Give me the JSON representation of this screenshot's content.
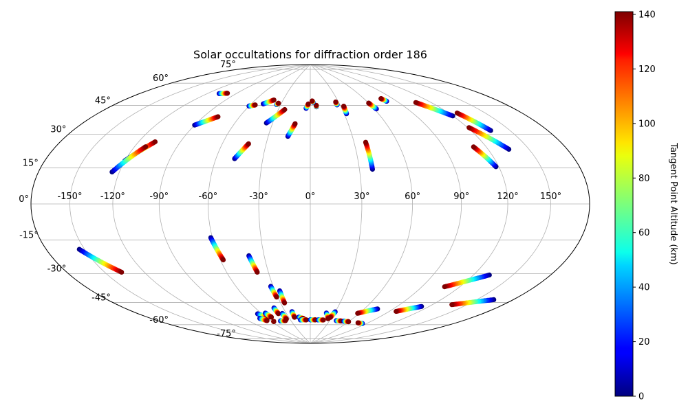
{
  "chart_data": {
    "type": "scatter",
    "projection": "hammer",
    "title": "Solar occultations for diffraction order 186",
    "grid": true,
    "lon_ticks": [
      -150,
      -120,
      -90,
      -60,
      -30,
      0,
      30,
      60,
      90,
      120,
      150
    ],
    "lat_ticks": [
      -75,
      -60,
      -45,
      -30,
      -15,
      0,
      15,
      30,
      45,
      60,
      75
    ],
    "colorbar": {
      "label": "Tangent Point Altitude (km)",
      "colormap": "jet",
      "range": [
        0,
        141
      ],
      "ticks": [
        0,
        20,
        40,
        60,
        80,
        100,
        120,
        140
      ]
    },
    "tracks": [
      {
        "lon0": -108,
        "lat0": 63,
        "lon1": -100,
        "lat1": 64
      },
      {
        "lon0": -90,
        "lat0": 44,
        "lon1": -78,
        "lat1": 50
      },
      {
        "lon0": -60,
        "lat0": 58,
        "lon1": -55,
        "lat1": 59
      },
      {
        "lon0": -48,
        "lat0": 60,
        "lon1": -40,
        "lat1": 63
      },
      {
        "lon0": -34,
        "lat0": 60,
        "lon1": -33,
        "lat1": 61
      },
      {
        "lon0": -35,
        "lat0": 48,
        "lon1": -24,
        "lat1": 57
      },
      {
        "lon0": -48,
        "lat0": 26,
        "lon1": -42,
        "lat1": 35
      },
      {
        "lon0": -16,
        "lat0": 40,
        "lon1": -12,
        "lat1": 48
      },
      {
        "lon0": -4,
        "lat0": 58,
        "lon1": -2,
        "lat1": 61
      },
      {
        "lon0": 6,
        "lat0": 59,
        "lon1": 6,
        "lat1": 60
      },
      {
        "lon0": 3,
        "lat0": 62,
        "lon1": 2,
        "lat1": 63
      },
      {
        "lon0": 27,
        "lat0": 60,
        "lon1": 27,
        "lat1": 62
      },
      {
        "lon0": 32,
        "lat0": 54,
        "lon1": 33,
        "lat1": 59
      },
      {
        "lon0": 38,
        "lat0": 20,
        "lon1": 38,
        "lat1": 36
      },
      {
        "lon0": 62,
        "lat0": 56,
        "lon1": 60,
        "lat1": 60
      },
      {
        "lon0": 80,
        "lat0": 60,
        "lon1": 78,
        "lat1": 62
      },
      {
        "lon0": 120,
        "lat0": 47,
        "lon1": 106,
        "lat1": 57
      },
      {
        "lon0": 135,
        "lat0": 37,
        "lon1": 127,
        "lat1": 48
      },
      {
        "lon0": 135,
        "lat0": 27,
        "lon1": 121,
        "lat1": 40
      },
      {
        "lon0": 118,
        "lat0": 19,
        "lon1": 111,
        "lat1": 30
      },
      {
        "lon0": -120,
        "lat0": 22,
        "lon1": -108,
        "lat1": 33
      },
      {
        "lon0": -125,
        "lat0": 16,
        "lon1": -112,
        "lat1": 30
      },
      {
        "lon0": -154,
        "lat0": -21,
        "lon1": -137,
        "lat1": -34
      },
      {
        "lon0": -61,
        "lat0": -19,
        "lon1": -58,
        "lat1": -32
      },
      {
        "lon0": -40,
        "lat0": -30,
        "lon1": -38,
        "lat1": -40
      },
      {
        "lon0": -32,
        "lat0": -49,
        "lon1": -31,
        "lat1": -56
      },
      {
        "lon0": -26,
        "lat0": -52,
        "lon1": -26,
        "lat1": -60
      },
      {
        "lon0": -65,
        "lat0": -66,
        "lon1": -58,
        "lat1": -69
      },
      {
        "lon0": -70,
        "lat0": -69,
        "lon1": -65,
        "lat1": -71
      },
      {
        "lon0": -57,
        "lat0": -72,
        "lon1": -57,
        "lat1": -72
      },
      {
        "lon0": -55,
        "lat0": -66,
        "lon1": -53,
        "lat1": -69
      },
      {
        "lon0": -40,
        "lat0": -63,
        "lon1": -40,
        "lat1": -67
      },
      {
        "lon0": -46,
        "lat0": -72,
        "lon1": -38,
        "lat1": -72
      },
      {
        "lon0": -35,
        "lat0": -67,
        "lon1": -35,
        "lat1": -71
      },
      {
        "lon0": -22,
        "lat0": -66,
        "lon1": -22,
        "lat1": -70
      },
      {
        "lon0": -16,
        "lat0": -70,
        "lon1": -10,
        "lat1": -71
      },
      {
        "lon0": -15,
        "lat0": -72,
        "lon1": -6,
        "lat1": -72
      },
      {
        "lon0": 0,
        "lat0": -72,
        "lon1": 8,
        "lat1": -72
      },
      {
        "lon0": 12,
        "lat0": -72,
        "lon1": 20,
        "lat1": -72
      },
      {
        "lon0": 20,
        "lat0": -67,
        "lon1": 26,
        "lat1": -71
      },
      {
        "lon0": 30,
        "lat0": -66,
        "lon1": 28,
        "lat1": -70
      },
      {
        "lon0": 40,
        "lat0": -72,
        "lon1": 48,
        "lat1": -72
      },
      {
        "lon0": 52,
        "lat0": -72,
        "lon1": 60,
        "lat1": -72
      },
      {
        "lon0": 84,
        "lat0": -72,
        "lon1": 76,
        "lat1": -72
      },
      {
        "lon0": 74,
        "lat0": -62,
        "lon1": 58,
        "lat1": -66
      },
      {
        "lon0": 113,
        "lat0": -57,
        "lon1": 97,
        "lat1": -62
      },
      {
        "lon0": 132,
        "lat0": -36,
        "lon1": 108,
        "lat1": -45
      },
      {
        "lon0": 164,
        "lat0": -46,
        "lon1": 137,
        "lat1": -53
      }
    ]
  }
}
